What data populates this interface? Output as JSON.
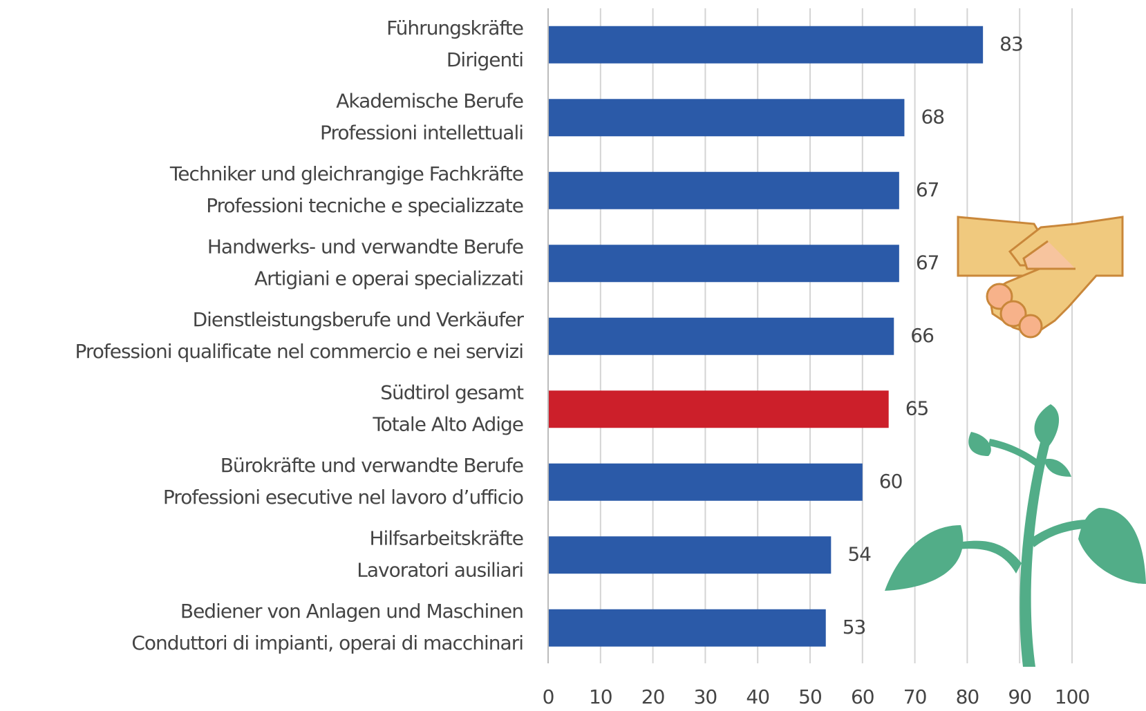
{
  "chart_data": {
    "type": "barh",
    "categories": [
      [
        "Führungskräfte",
        "Dirigenti"
      ],
      [
        "Akademische Berufe",
        "Professioni intellettuali"
      ],
      [
        "Techniker und gleichrangige Fachkräfte",
        "Professioni tecniche e specializzate"
      ],
      [
        "Handwerks- und verwandte Berufe",
        "Artigiani e operai specializzati"
      ],
      [
        "Dienstleistungsberufe und Verkäufer",
        "Professioni qualificate nel commercio e nei servizi"
      ],
      [
        "Südtirol gesamt",
        "Totale Alto Adige"
      ],
      [
        "Bürokräfte und verwandte Berufe",
        "Professioni esecutive nel lavoro d’ufficio"
      ],
      [
        "Hilfsarbeitskräfte",
        "Lavoratori ausiliari"
      ],
      [
        "Bediener von Anlagen und Maschinen",
        "Conduttori di impianti, operai di macchinari"
      ]
    ],
    "values": [
      83,
      68,
      67,
      67,
      66,
      65,
      60,
      54,
      53
    ],
    "colors": [
      "#2b5aa8",
      "#2b5aa8",
      "#2b5aa8",
      "#2b5aa8",
      "#2b5aa8",
      "#cc1f2a",
      "#2b5aa8",
      "#2b5aa8",
      "#2b5aa8"
    ],
    "xlim": [
      0,
      100
    ],
    "xticks": [
      0,
      10,
      20,
      30,
      40,
      50,
      60,
      70,
      80,
      90,
      100
    ],
    "grid": true
  }
}
